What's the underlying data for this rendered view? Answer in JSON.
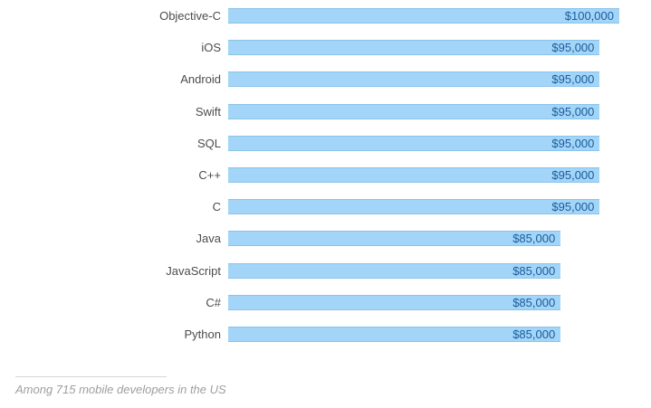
{
  "chart_data": {
    "type": "bar",
    "orientation": "horizontal",
    "title": "",
    "xlabel": "",
    "ylabel": "",
    "categories": [
      "Objective-C",
      "iOS",
      "Android",
      "Swift",
      "SQL",
      "C++",
      "C",
      "Java",
      "JavaScript",
      "C#",
      "Python"
    ],
    "values": [
      100000,
      95000,
      95000,
      95000,
      95000,
      95000,
      95000,
      85000,
      85000,
      85000,
      85000
    ],
    "value_labels": [
      "$100,000",
      "$95,000",
      "$95,000",
      "$95,000",
      "$95,000",
      "$95,000",
      "$95,000",
      "$85,000",
      "$85,000",
      "$85,000",
      "$85,000"
    ],
    "xlim": [
      0,
      100000
    ],
    "grid": false,
    "legend": false,
    "colors": {
      "bar_fill": "#a2d5f8",
      "value_label": "#1a5c9b",
      "category_label": "#4c4c4c"
    }
  },
  "footer": {
    "note": "Among 715 mobile developers in the US",
    "note_color": "#9e9e9e"
  }
}
